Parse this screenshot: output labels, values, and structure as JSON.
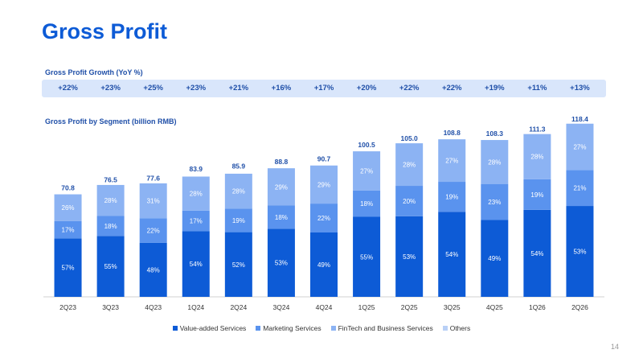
{
  "page": {
    "title": "Gross Profit",
    "page_number": "14"
  },
  "growth": {
    "title": "Gross Profit Growth (YoY %)",
    "values": [
      "+22%",
      "+23%",
      "+25%",
      "+23%",
      "+21%",
      "+16%",
      "+17%",
      "+20%",
      "+22%",
      "+22%",
      "+19%",
      "+11%",
      "+13%"
    ]
  },
  "colors": {
    "Value-added Services": "#0d5bd6",
    "Marketing Services": "#5a93ee",
    "FinTech and Business Services": "#8cb3f3",
    "Others": "#b9d0f6"
  },
  "chart_data": {
    "type": "bar",
    "stacked": true,
    "title": "Gross Profit by Segment (billion RMB)",
    "categories": [
      "2Q23",
      "3Q23",
      "4Q23",
      "1Q24",
      "2Q24",
      "3Q24",
      "4Q24",
      "1Q25",
      "2Q25",
      "3Q25",
      "4Q25",
      "1Q26",
      "2Q26"
    ],
    "totals": [
      70.8,
      76.5,
      77.6,
      83.9,
      85.9,
      88.8,
      90.7,
      100.5,
      105.0,
      108.8,
      108.3,
      111.3,
      118.4
    ],
    "total_labels": [
      "70.8",
      "76.5",
      "77.6",
      "83.9",
      "85.9",
      "88.8",
      "90.7",
      "100.5",
      "105.0",
      "108.8",
      "108.3",
      "111.3",
      "118.4"
    ],
    "series": [
      {
        "name": "Value-added Services",
        "share": [
          57,
          55,
          48,
          54,
          52,
          53,
          49,
          55,
          53,
          54,
          49,
          54,
          53
        ]
      },
      {
        "name": "Marketing Services",
        "share": [
          17,
          18,
          22,
          17,
          19,
          18,
          22,
          18,
          20,
          19,
          23,
          19,
          21
        ]
      },
      {
        "name": "FinTech and Business Services",
        "share": [
          26,
          28,
          31,
          28,
          28,
          29,
          29,
          27,
          28,
          27,
          28,
          28,
          27
        ]
      },
      {
        "name": "Others",
        "share": []
      }
    ],
    "ylim": [
      0,
      120
    ],
    "legend_position": "bottom",
    "grid": false
  }
}
